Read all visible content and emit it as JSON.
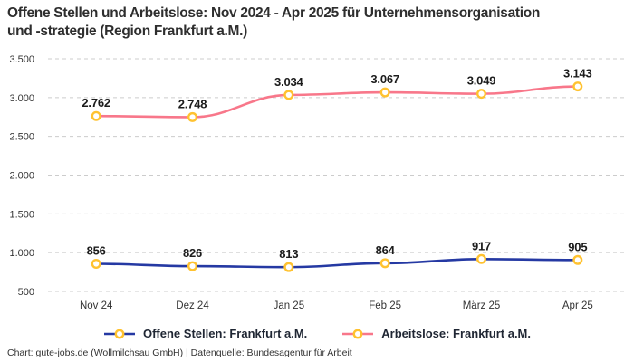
{
  "title": {
    "line1": "Offene Stellen und Arbeitslose: Nov 2024 - Apr 2025 für Unternehmensorganisation",
    "line2": "und -strategie (Region Frankfurt a.M.)"
  },
  "chart_data": {
    "type": "line",
    "curve": "smooth",
    "grid": "horizontal-dashed",
    "legend_position": "bottom",
    "categories": [
      "Nov 24",
      "Dez 24",
      "Jan 25",
      "Feb 25",
      "März 25",
      "Apr 25"
    ],
    "series": [
      {
        "name": "Offene Stellen: Frankfurt a.M.",
        "color": "#2539A3",
        "marker_color": "#FFC230",
        "values": [
          856,
          826,
          813,
          864,
          917,
          905
        ],
        "labels": [
          "856",
          "826",
          "813",
          "864",
          "917",
          "905"
        ]
      },
      {
        "name": "Arbeitslose: Frankfurt a.M.",
        "color": "#F8778A",
        "marker_color": "#FFC230",
        "values": [
          2762,
          2748,
          3034,
          3067,
          3049,
          3143
        ],
        "labels": [
          "2.762",
          "2.748",
          "3.034",
          "3.067",
          "3.049",
          "3.143"
        ]
      }
    ],
    "y_axis": {
      "min": 500,
      "max": 3500,
      "tick_step": 500,
      "tick_labels": [
        "500",
        "1.000",
        "1.500",
        "2.000",
        "2.500",
        "3.000",
        "3.500"
      ]
    }
  },
  "footer": {
    "text": "Chart: gute-jobs.de (Wollmilchsau GmbH) | Datenquelle: Bundesagentur für Arbeit"
  },
  "colors": {
    "grid": "#cccccc",
    "axis_text": "#333333",
    "label_text": "#1c1c1c",
    "title_text": "#2e2e2e",
    "legend_text": "#1f2633",
    "marker_fill": "#ffffff"
  }
}
